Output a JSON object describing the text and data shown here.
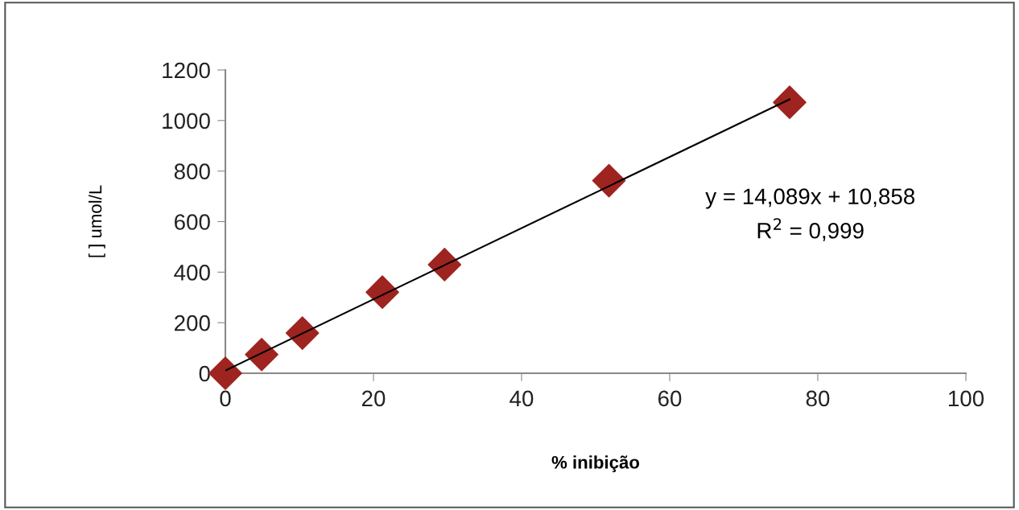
{
  "chart_data": {
    "type": "scatter",
    "xlabel": "% inibição",
    "ylabel": "[ ] umol/L",
    "x": [
      0,
      4.9,
      10.4,
      21.2,
      29.6,
      51.8,
      76.2
    ],
    "series": [
      {
        "color": "#9e2420",
        "marker": "diamond",
        "values": [
          0,
          74,
          159,
          321,
          430,
          762,
          1072
        ]
      },
      {
        "type": "line",
        "color": "#000000",
        "x": [
          0,
          76.2
        ],
        "values": [
          11,
          1084
        ],
        "line_style": "solid",
        "marker": "none"
      }
    ],
    "annotations": [
      "y = 14,089x + 10,858\nR$^{2}$ = 0,999"
    ],
    "xlim": [
      0,
      100
    ],
    "ylim": [
      0,
      1200
    ],
    "xticks": [
      0,
      20,
      40,
      60,
      80,
      100
    ],
    "yticks": [
      0,
      200,
      400,
      600,
      800,
      1000,
      1200
    ],
    "grid": false,
    "legend": false
  }
}
